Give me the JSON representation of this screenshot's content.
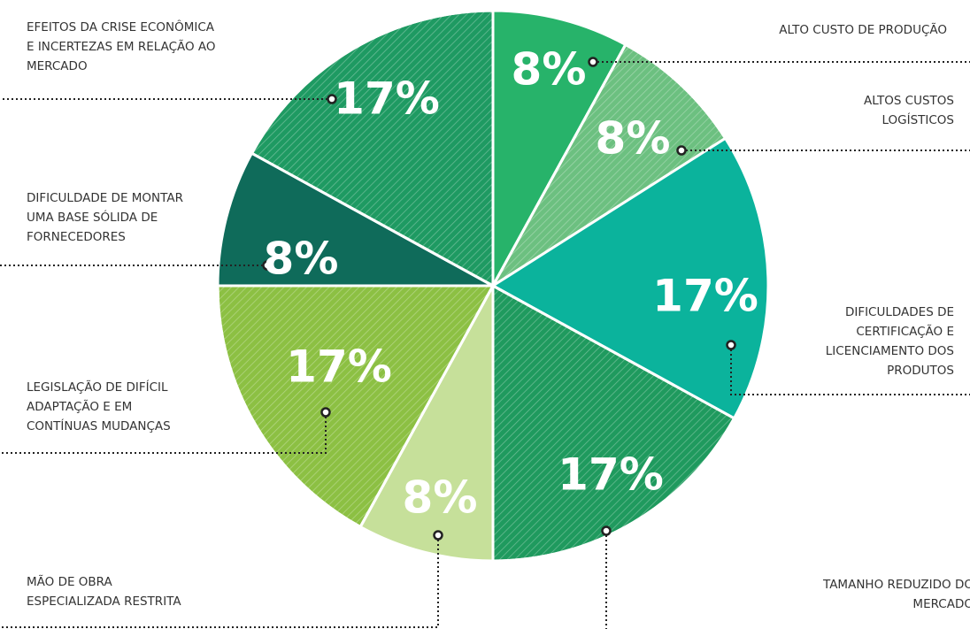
{
  "chart_data": {
    "type": "pie",
    "categories": [
      [
        "ALTO CUSTO DE PRODUÇÃO"
      ],
      [
        "ALTOS CUSTOS",
        "LOGÍSTICOS"
      ],
      [
        "DIFICULDADES DE",
        "CERTIFICAÇÃO E",
        "LICENCIAMENTO DOS",
        "PRODUTOS"
      ],
      [
        "TAMANHO REDUZIDO DO",
        "MERCADO"
      ],
      [
        "MÃO DE OBRA",
        "ESPECIALIZADA RESTRITA"
      ],
      [
        "LEGISLAÇÃO DE DIFÍCIL",
        "ADAPTAÇÃO E EM",
        "CONTÍNUAS MUDANÇAS"
      ],
      [
        "DIFICULDADE DE MONTAR",
        "UMA BASE SÓLIDA DE",
        "FORNECEDORES"
      ],
      [
        "EFEITOS DA CRISE ECONÔMICA",
        "E INCERTEZAS EM RELAÇÃO AO",
        "MERCADO"
      ]
    ],
    "values": [
      8,
      8,
      17,
      17,
      8,
      17,
      8,
      17
    ],
    "value_labels": [
      "8%",
      "8%",
      "17%",
      "17%",
      "8%",
      "17%",
      "8%",
      "17%"
    ],
    "colors": [
      "#27b36a",
      "#6cc080",
      "#0bb39c",
      "#1f9a5e",
      "#c6e09a",
      "#8cc043",
      "#0f6b5a",
      "#1e9a62"
    ],
    "hatched": [
      false,
      true,
      false,
      true,
      false,
      true,
      false,
      true
    ]
  }
}
